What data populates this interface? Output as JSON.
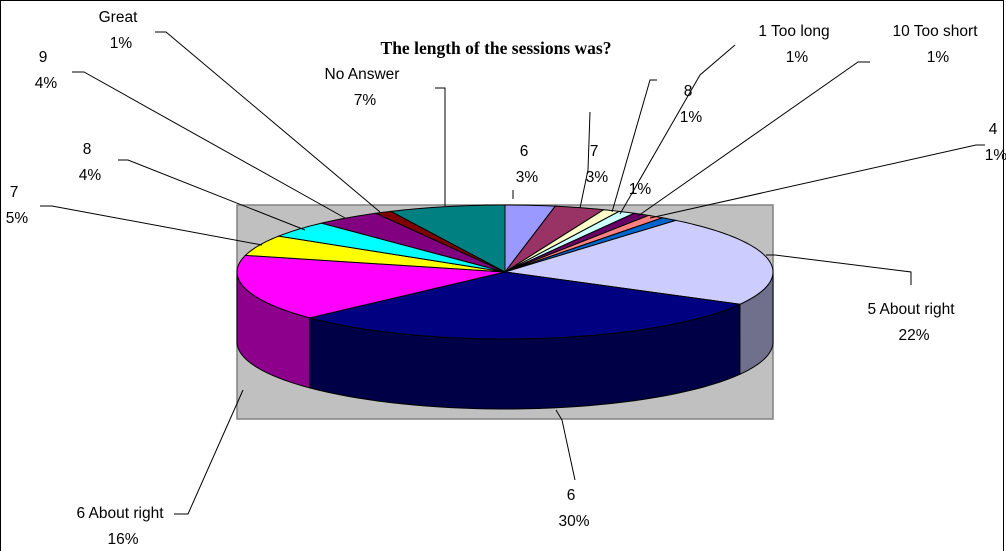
{
  "chart_data": {
    "type": "pie",
    "title": "The length of the sessions was?",
    "categories": [
      "6",
      "7",
      "8",
      "1 Too long",
      null,
      "10 Too short",
      "4",
      "5 About right",
      "6",
      "6 About right",
      "7",
      "8",
      "9",
      "Great",
      "No Answer"
    ],
    "values": [
      3,
      3,
      1,
      1,
      1,
      1,
      1,
      22,
      30,
      16,
      5,
      4,
      4,
      1,
      7
    ],
    "value_labels": [
      "3%",
      "3%",
      "1%",
      "1%",
      "1%",
      "1%",
      "1%",
      "22%",
      "30%",
      "16%",
      "5%",
      "4%",
      "4%",
      "1%",
      "7%"
    ],
    "colors": [
      "#9999ff",
      "#993366",
      "#ffffcc",
      "#ccffff",
      "#660066",
      "#ff8080",
      "#0066cc",
      "#ccccff",
      "#000080",
      "#ff00ff",
      "#ffff00",
      "#00ffff",
      "#800080",
      "#800000",
      "#008080"
    ]
  }
}
